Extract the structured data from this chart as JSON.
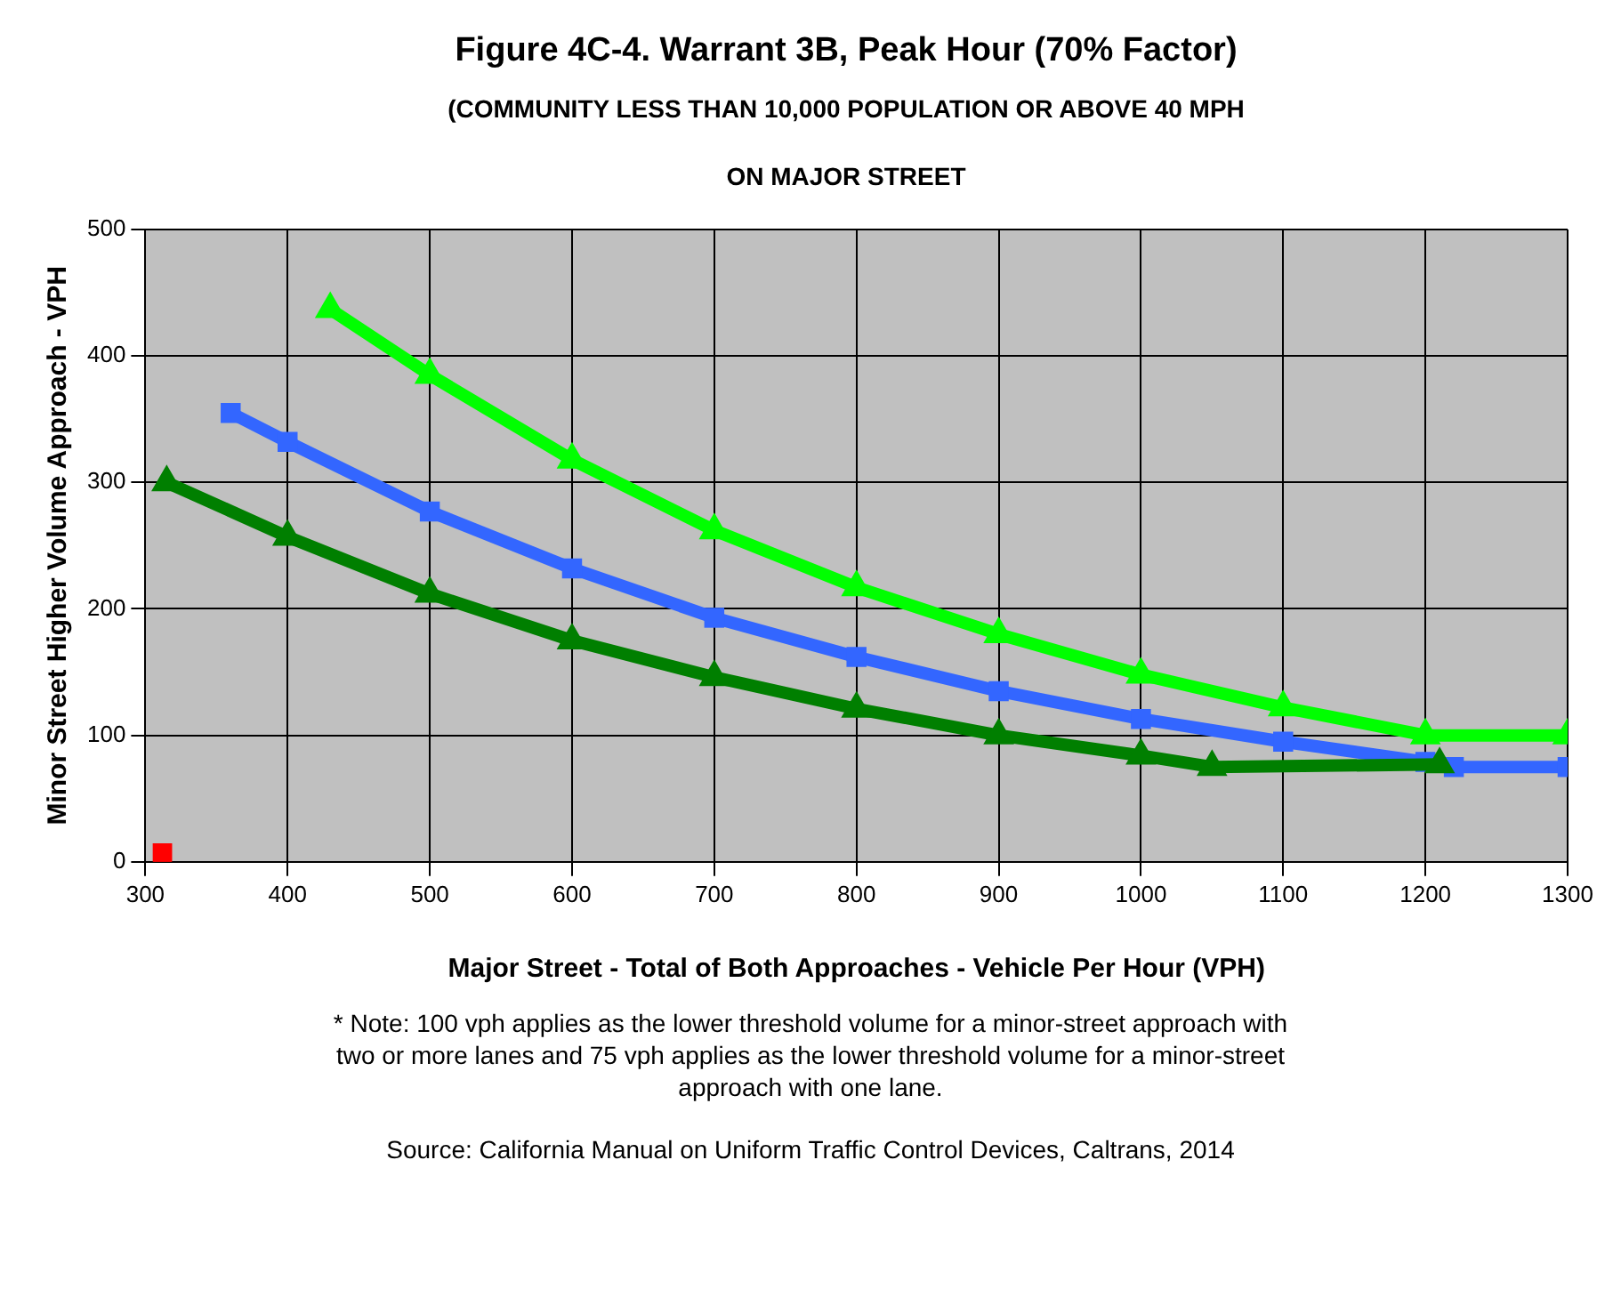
{
  "chart_data": {
    "type": "line",
    "title": "Figure 4C-4.  Warrant 3B, Peak Hour (70%  Factor)",
    "subtitle": "(COMMUNITY LESS THAN 10,000 POPULATION OR ABOVE 40 MPH ON MAJOR STREET",
    "xlabel": "Major Street - Total of Both Approaches - Vehicle Per Hour (VPH)",
    "ylabel": "Minor Street Higher Volume Approach - VPH",
    "xlim": [
      300,
      1300
    ],
    "xticks": [
      300,
      400,
      500,
      600,
      700,
      800,
      900,
      1000,
      1100,
      1200,
      1300
    ],
    "ylim": [
      0,
      500
    ],
    "yticks": [
      0,
      100,
      200,
      300,
      400,
      500
    ],
    "grid": true,
    "legend": false,
    "series": [
      {
        "color": "#00ff00",
        "marker": "triangle",
        "x": [
          430,
          500,
          600,
          700,
          800,
          900,
          1000,
          1100,
          1200,
          1300
        ],
        "values": [
          437,
          385,
          318,
          262,
          217,
          180,
          148,
          122,
          100,
          100
        ]
      },
      {
        "color": "#3366ff",
        "marker": "square",
        "x": [
          360,
          400,
          500,
          600,
          700,
          800,
          900,
          1000,
          1100,
          1200,
          1220,
          1300
        ],
        "values": [
          355,
          332,
          277,
          232,
          193,
          162,
          135,
          113,
          95,
          79,
          75,
          75
        ]
      },
      {
        "color": "#007f00",
        "marker": "triangle",
        "x": [
          315,
          400,
          500,
          600,
          700,
          800,
          900,
          1000,
          1050,
          1210
        ],
        "values": [
          300,
          257,
          212,
          175,
          146,
          121,
          100,
          84,
          75,
          77
        ]
      },
      {
        "type": "scatter",
        "color": "#ff0000",
        "marker": "square",
        "x": [
          312
        ],
        "values": [
          7
        ]
      }
    ],
    "annotations": [
      "* Note:    100 vph applies as the lower threshold volume for a minor-street approach with two or more lanes and 75 vph applies as the lower threshold volume for a minor-street approach with one lane.",
      "Source: California Manual on Uniform Traffic Control Devices, Caltrans, 2014"
    ]
  }
}
